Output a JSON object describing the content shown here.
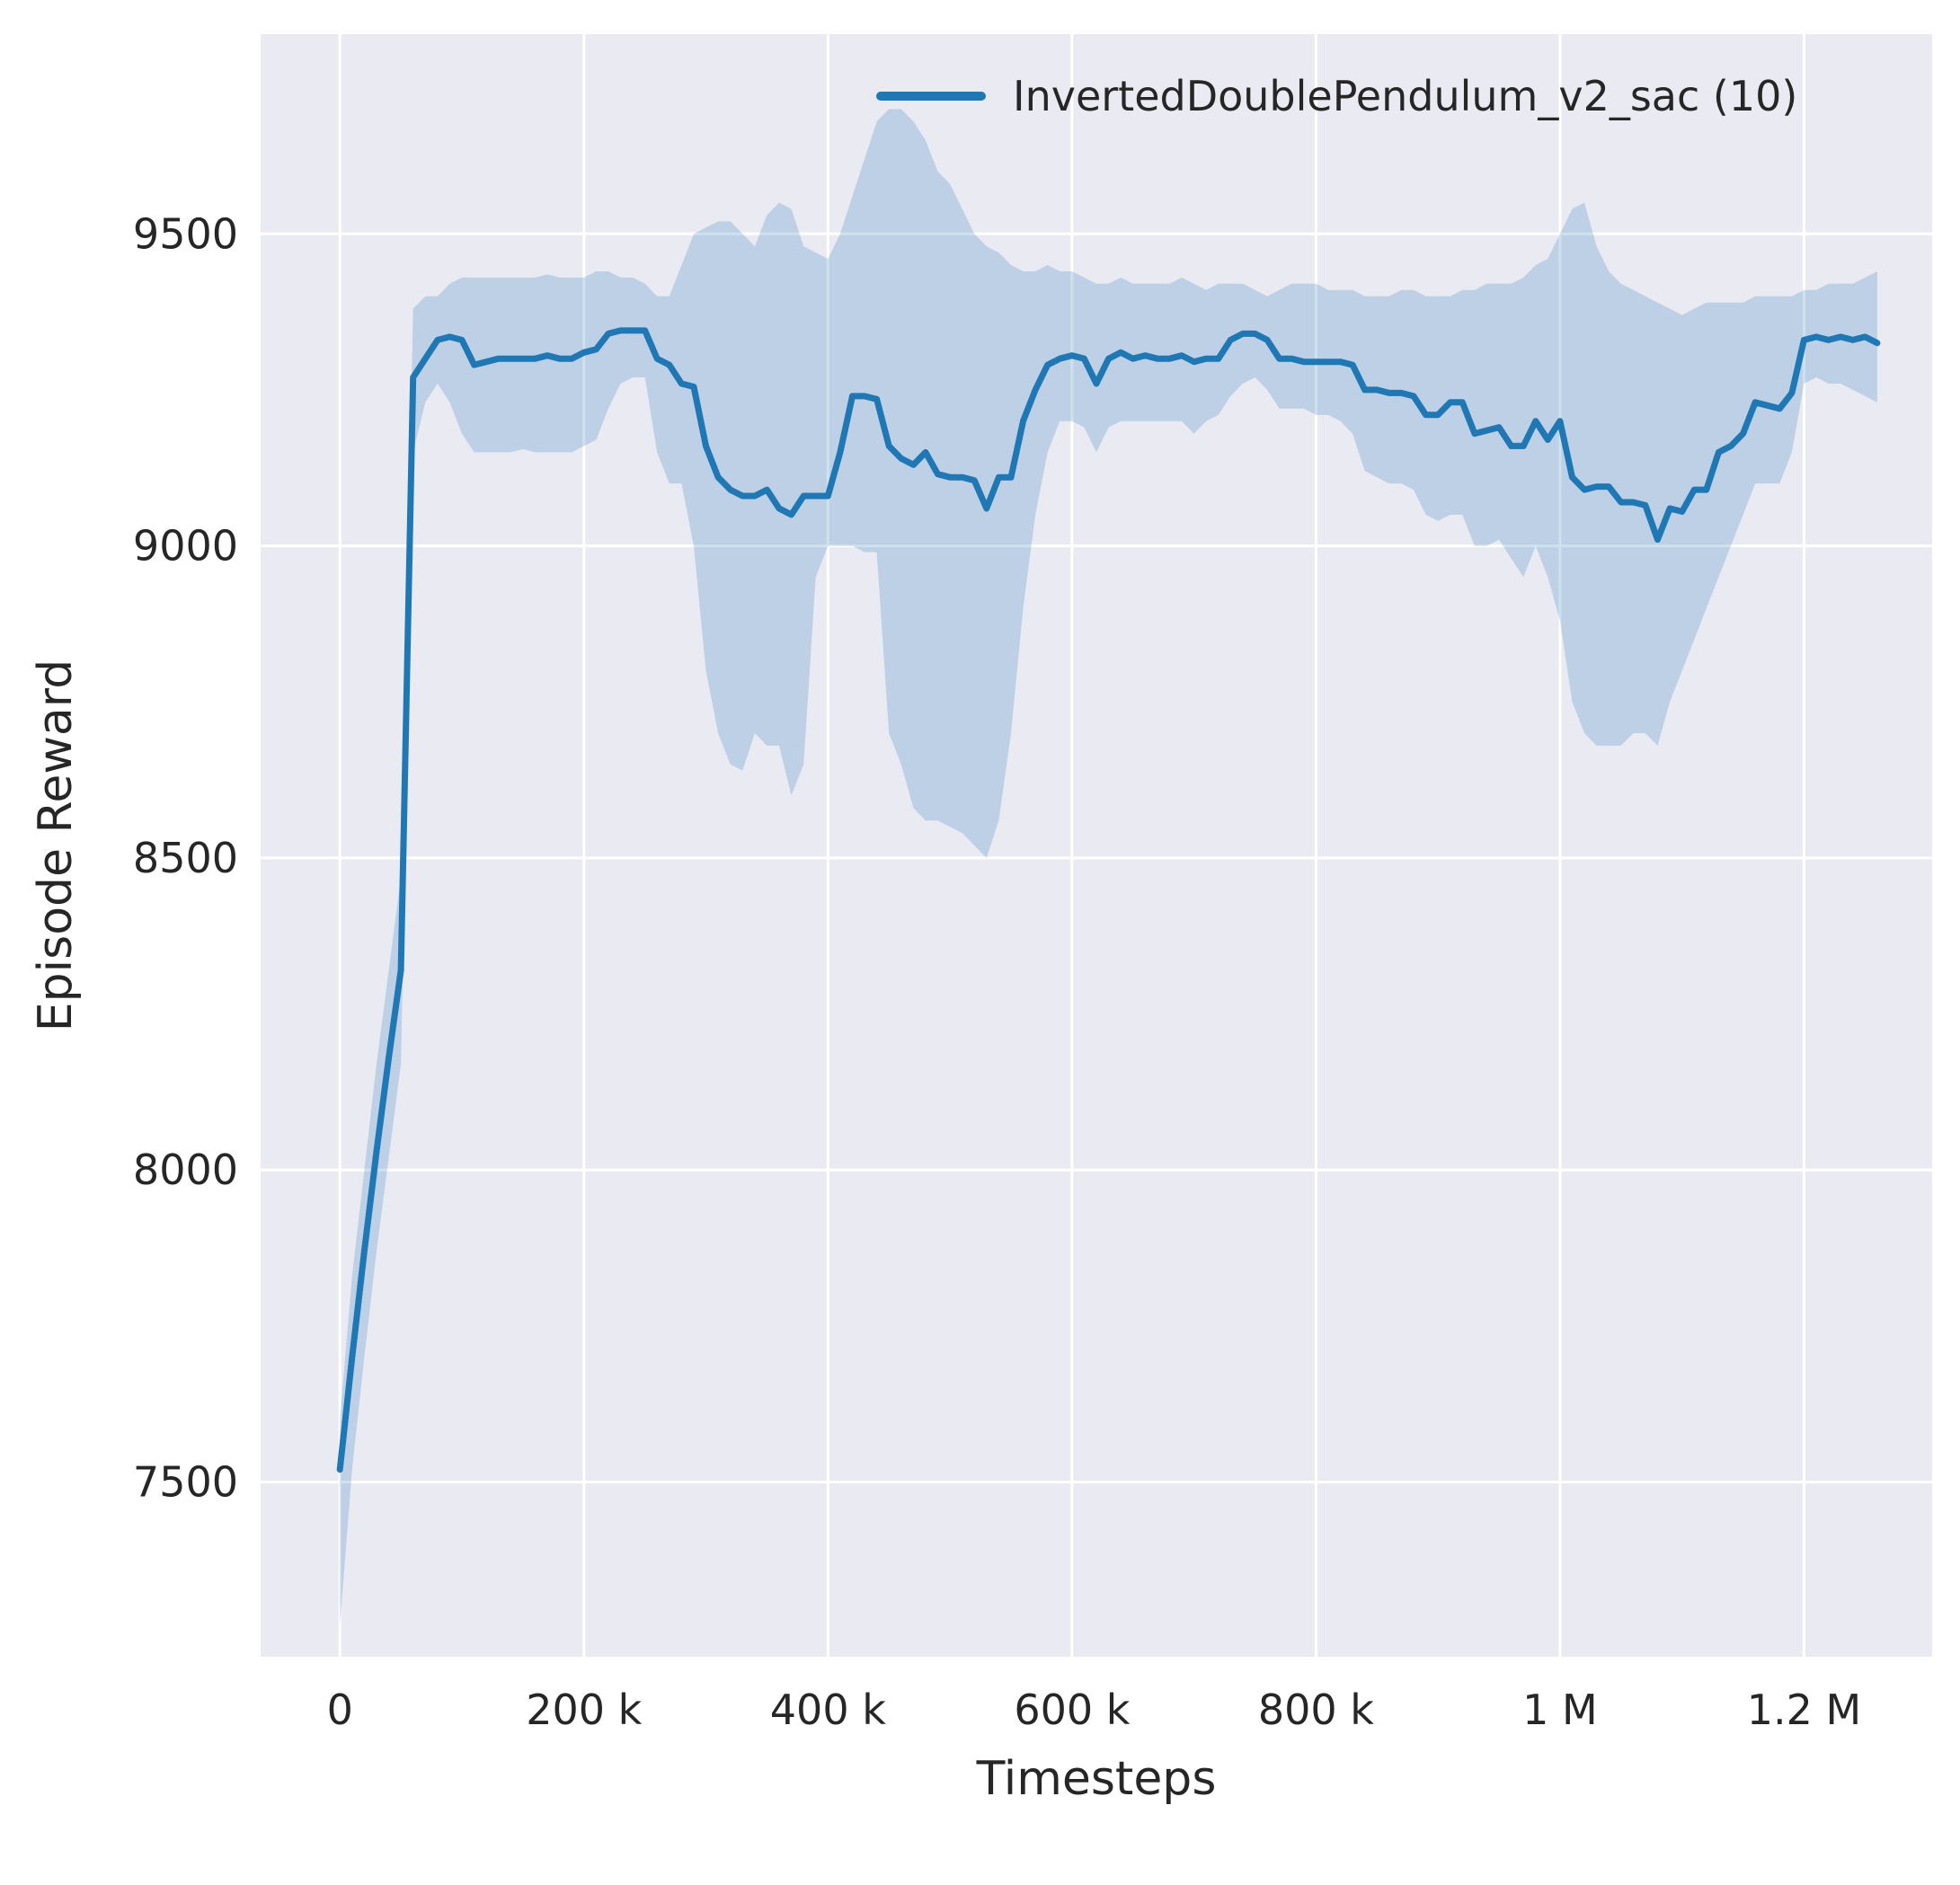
{
  "chart_data": {
    "type": "line",
    "title": "",
    "xlabel": "Timesteps",
    "ylabel": "Episode Reward",
    "legend": {
      "label": "InvertedDoublePendulum_v2_sac (10)",
      "position": "upper center",
      "frame": false
    },
    "grid": true,
    "xlim": [
      -65000,
      1305000
    ],
    "ylim": [
      7220,
      9820
    ],
    "xticks": {
      "values": [
        0,
        200000,
        400000,
        600000,
        800000,
        1000000,
        1200000
      ],
      "labels": [
        "0",
        "200 k",
        "400 k",
        "600 k",
        "800 k",
        "1 M",
        "1.2 M"
      ]
    },
    "yticks": {
      "values": [
        7500,
        8000,
        8500,
        9000,
        9500
      ],
      "labels": [
        "7500",
        "8000",
        "8500",
        "9000",
        "9500"
      ]
    },
    "x_start": 0,
    "x_step": 10000,
    "n_points": 127,
    "series": [
      {
        "name": "InvertedDoublePendulum_v2_sac (10)",
        "mean": [
          7520,
          7700,
          7870,
          8030,
          8180,
          8320,
          9270,
          9300,
          9330,
          9335,
          9330,
          9290,
          9295,
          9300,
          9300,
          9300,
          9300,
          9305,
          9300,
          9300,
          9310,
          9315,
          9340,
          9345,
          9345,
          9345,
          9300,
          9290,
          9260,
          9255,
          9160,
          9110,
          9090,
          9080,
          9080,
          9090,
          9060,
          9050,
          9080,
          9080,
          9080,
          9150,
          9240,
          9240,
          9235,
          9160,
          9140,
          9130,
          9150,
          9115,
          9110,
          9110,
          9105,
          9060,
          9110,
          9110,
          9200,
          9250,
          9290,
          9300,
          9305,
          9300,
          9260,
          9300,
          9310,
          9300,
          9305,
          9300,
          9300,
          9305,
          9295,
          9300,
          9300,
          9330,
          9340,
          9340,
          9330,
          9300,
          9300,
          9295,
          9295,
          9295,
          9295,
          9290,
          9250,
          9250,
          9245,
          9245,
          9240,
          9210,
          9210,
          9230,
          9230,
          9180,
          9185,
          9190,
          9160,
          9160,
          9200,
          9170,
          9200,
          9110,
          9090,
          9095,
          9095,
          9070,
          9070,
          9065,
          9010,
          9060,
          9055,
          9090,
          9090,
          9150,
          9160,
          9180,
          9230,
          9225,
          9220,
          9245,
          9330,
          9335,
          9330,
          9335,
          9330,
          9335,
          9325
        ],
        "band_lower": [
          7270,
          7520,
          7700,
          7870,
          8020,
          8170,
          9150,
          9230,
          9260,
          9230,
          9180,
          9150,
          9150,
          9150,
          9150,
          9155,
          9150,
          9150,
          9150,
          9150,
          9160,
          9170,
          9220,
          9260,
          9270,
          9270,
          9150,
          9100,
          9100,
          9000,
          8800,
          8700,
          8650,
          8640,
          8700,
          8680,
          8680,
          8600,
          8650,
          8950,
          9000,
          9000,
          9000,
          8990,
          8990,
          8700,
          8650,
          8580,
          8560,
          8560,
          8550,
          8540,
          8520,
          8500,
          8560,
          8700,
          8900,
          9050,
          9150,
          9200,
          9200,
          9190,
          9150,
          9190,
          9200,
          9200,
          9200,
          9200,
          9200,
          9200,
          9180,
          9200,
          9210,
          9240,
          9260,
          9270,
          9250,
          9220,
          9220,
          9220,
          9210,
          9210,
          9200,
          9180,
          9120,
          9110,
          9100,
          9100,
          9090,
          9050,
          9040,
          9050,
          9050,
          9000,
          9000,
          9010,
          8980,
          8950,
          9000,
          8950,
          8880,
          8750,
          8700,
          8680,
          8680,
          8680,
          8700,
          8700,
          8680,
          8750,
          8800,
          8850,
          8900,
          8950,
          9000,
          9050,
          9100,
          9100,
          9100,
          9150,
          9260,
          9270,
          9260,
          9260,
          9250,
          9240,
          9230
        ],
        "band_upper": [
          7600,
          7830,
          8000,
          8170,
          8320,
          8470,
          9380,
          9400,
          9400,
          9420,
          9430,
          9430,
          9430,
          9430,
          9430,
          9430,
          9430,
          9435,
          9430,
          9430,
          9430,
          9440,
          9440,
          9430,
          9430,
          9420,
          9400,
          9400,
          9450,
          9500,
          9510,
          9520,
          9520,
          9500,
          9480,
          9530,
          9550,
          9540,
          9480,
          9470,
          9460,
          9500,
          9560,
          9620,
          9680,
          9700,
          9700,
          9680,
          9650,
          9600,
          9580,
          9540,
          9500,
          9480,
          9470,
          9450,
          9440,
          9440,
          9450,
          9440,
          9440,
          9430,
          9420,
          9420,
          9430,
          9420,
          9420,
          9420,
          9420,
          9430,
          9420,
          9410,
          9420,
          9420,
          9420,
          9410,
          9400,
          9410,
          9420,
          9420,
          9420,
          9410,
          9410,
          9410,
          9400,
          9400,
          9400,
          9410,
          9410,
          9400,
          9400,
          9400,
          9410,
          9410,
          9420,
          9420,
          9420,
          9430,
          9450,
          9460,
          9500,
          9540,
          9550,
          9480,
          9440,
          9420,
          9410,
          9400,
          9390,
          9380,
          9370,
          9380,
          9390,
          9390,
          9390,
          9390,
          9400,
          9400,
          9400,
          9400,
          9410,
          9410,
          9420,
          9420,
          9420,
          9430,
          9440
        ]
      }
    ],
    "colors": {
      "line": "#1f77b4",
      "band": "#1f77b4",
      "band_opacity": 0.22,
      "axes_bg": "#eaeaf2",
      "grid": "#ffffff",
      "figure_bg": "#ffffff",
      "text": "#262626"
    }
  }
}
